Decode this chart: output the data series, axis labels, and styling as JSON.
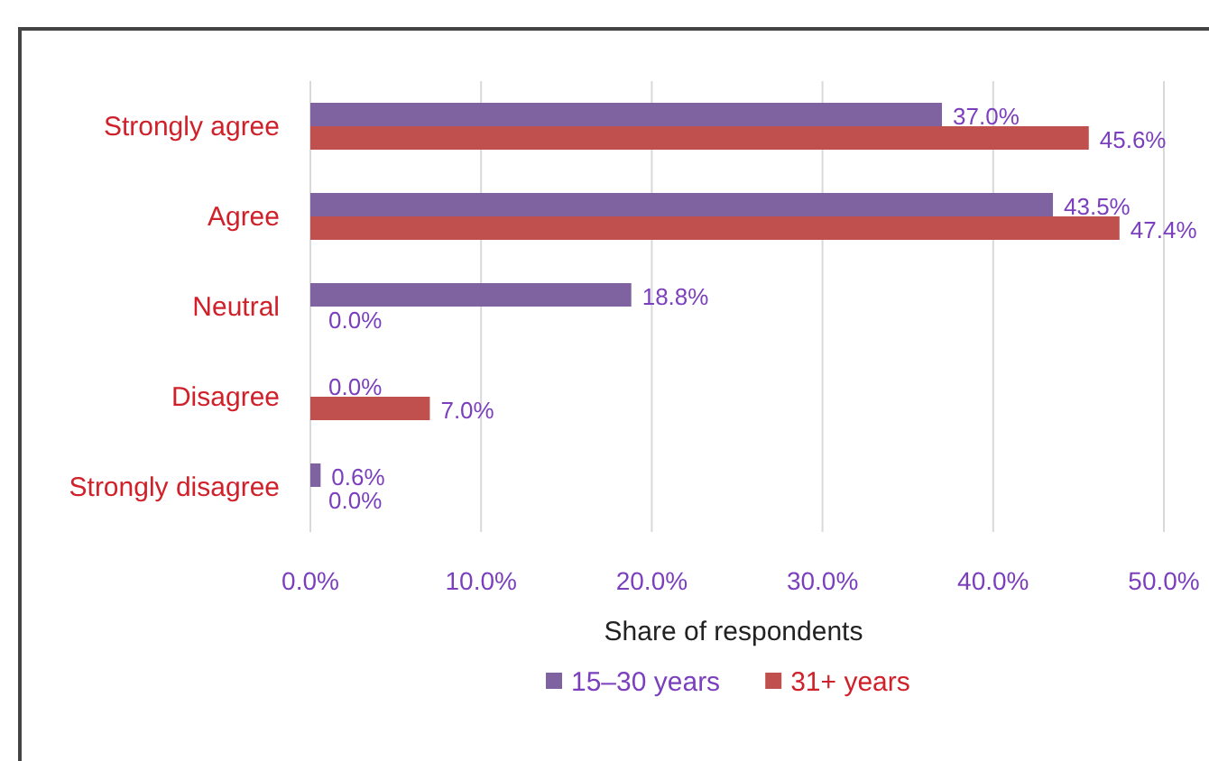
{
  "chart_data": {
    "type": "bar",
    "orientation": "horizontal",
    "xlabel": "Share of respondents",
    "categories": [
      "Strongly agree",
      "Agree",
      "Neutral",
      "Disagree",
      "Strongly disagree"
    ],
    "series": [
      {
        "name": "15–30 years",
        "color": "#7f63a1",
        "values": [
          37.0,
          43.5,
          18.8,
          0.0,
          0.6
        ],
        "value_labels": [
          "37.0%",
          "43.5%",
          "18.8%",
          "0.0%",
          "0.6%"
        ]
      },
      {
        "name": "31+ years",
        "color": "#c0504d",
        "values": [
          45.6,
          47.4,
          0.0,
          7.0,
          0.0
        ],
        "value_labels": [
          "45.6%",
          "47.4%",
          "0.0%",
          "7.0%",
          "0.0%"
        ]
      }
    ],
    "xlim": [
      0,
      50
    ],
    "xticks": [
      {
        "value": 0,
        "label": "0.0%"
      },
      {
        "value": 10,
        "label": "10.0%"
      },
      {
        "value": 20,
        "label": "20.0%"
      },
      {
        "value": 30,
        "label": "30.0%"
      },
      {
        "value": 40,
        "label": "40.0%"
      },
      {
        "value": 50,
        "label": "50.0%"
      }
    ],
    "grid": "x",
    "legend": "bottom"
  }
}
